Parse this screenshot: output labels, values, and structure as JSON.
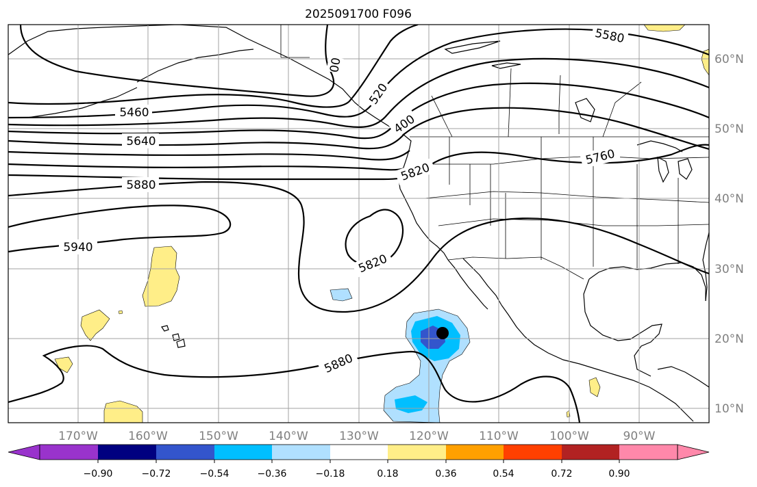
{
  "title": "2025091700 F096",
  "colors": {
    "background": "#ffffff",
    "grid": "#a0a0a0",
    "contour": "#000000",
    "land_outline": "#000000"
  },
  "map": {
    "lon_labels": [
      "170°W",
      "160°W",
      "150°W",
      "140°W",
      "130°W",
      "120°W",
      "110°W",
      "100°W",
      "90°W"
    ],
    "lat_labels": [
      "60°N",
      "50°N",
      "40°N",
      "30°N",
      "20°N",
      "10°N"
    ],
    "contour_labels": [
      "5580",
      "5460",
      "5640",
      "5880",
      "5940",
      "5820",
      "5880",
      "5820",
      "5760",
      "520",
      "400",
      "00"
    ],
    "storm_marker": {
      "lon": -118,
      "lat": 21,
      "color": "#000000"
    }
  },
  "colorbar": {
    "ticks": [
      "−0.90",
      "−0.72",
      "−0.54",
      "−0.36",
      "−0.18",
      "0.18",
      "0.36",
      "0.54",
      "0.72",
      "0.90"
    ],
    "colors": [
      "#9933cc",
      "#000080",
      "#3355cc",
      "#00bfff",
      "#b0e0ff",
      "#ffffff",
      "#ffee88",
      "#ffa000",
      "#ff4000",
      "#b22222",
      "#ff88aa"
    ]
  }
}
